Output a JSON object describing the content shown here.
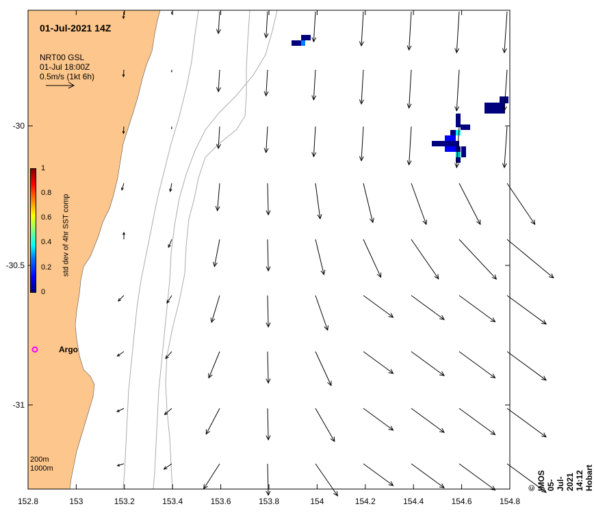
{
  "title": "01-Jul-2021 14Z",
  "legend": {
    "line1": "NRT00 GSL",
    "line2": "01-Jul 18:00Z",
    "line3": "0.5m/s (1kt 6h)"
  },
  "colorbar": {
    "title": "std dev of 4hr SST comp",
    "ticks": [
      "1",
      "0.8",
      "0.6",
      "0.4",
      "0.2",
      "0"
    ],
    "colors": [
      "#00007f",
      "#0000ff",
      "#007fff",
      "#00ffff",
      "#7fff7f",
      "#ffff00",
      "#ff7f00",
      "#ff0000",
      "#7f0000"
    ]
  },
  "argo": {
    "label": "Argo",
    "marker_color": "#ff00ff"
  },
  "depth_contours": [
    "200m",
    "1000m"
  ],
  "credit": "© IMOS 05-Jul-2021 14:12 Hobart",
  "colors": {
    "land": "#fcc68c",
    "contour": "#aaaaaa",
    "ocean": "#ffffff"
  },
  "axes": {
    "x_ticks": [
      "152.8",
      "153",
      "153.2",
      "153.4",
      "153.6",
      "153.8",
      "154",
      "154.2",
      "154.4",
      "154.6",
      "154.8"
    ],
    "y_ticks": [
      "-30",
      "-30.5",
      "-31"
    ]
  }
}
